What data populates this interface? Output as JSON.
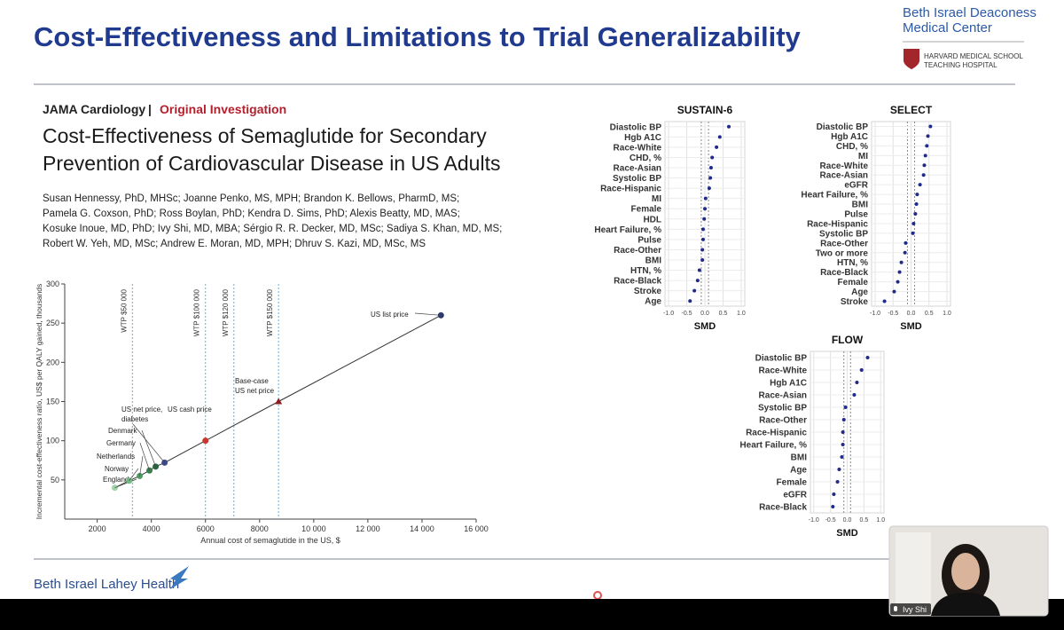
{
  "header": {
    "title": "Cost-Effectiveness and Limitations to Trial Generalizability",
    "logo": {
      "name_lines": [
        "Beth Israel Deaconess",
        "Medical Center"
      ],
      "affiliation_lines": [
        "HARVARD MEDICAL SCHOOL",
        "TEACHING HOSPITAL"
      ]
    }
  },
  "article": {
    "journal": "JAMA Cardiology",
    "separator": "|",
    "section": "Original Investigation",
    "title_lines": [
      "Cost-Effectiveness of Semaglutide for Secondary",
      "Prevention of Cardiovascular Disease in US Adults"
    ],
    "author_lines": [
      "Susan Hennessy, PhD, MHSc; Joanne Penko, MS, MPH; Brandon K. Bellows, PharmD, MS;",
      "Pamela G. Coxson, PhD; Ross Boylan, PhD; Kendra D. Sims, PhD; Alexis Beatty, MD, MAS;",
      "Kosuke Inoue, MD, PhD; Ivy Shi, MD, MBA; Sérgio R. R. Decker, MD, MSc; Sadiya S. Khan, MD, MS;",
      "Robert W. Yeh, MD, MSc; Andrew E. Moran, MD, MPH; Dhruv S. Kazi, MD, MSc, MS"
    ]
  },
  "chart_data": [
    {
      "type": "scatter",
      "x_label": "Annual cost of semaglutide in the US, $",
      "y_label": "Incremental cost-effectiveness ratio, US$ per QALY gained, thousands",
      "xlim": [
        800,
        16000
      ],
      "ylim": [
        0,
        300
      ],
      "xticks": [
        2000,
        4000,
        6000,
        8000,
        {
          "value": 10000,
          "label": "10 000"
        },
        {
          "value": 12000,
          "label": "12 000"
        },
        {
          "value": 14000,
          "label": "14 000"
        },
        {
          "value": 16000,
          "label": "16 000"
        }
      ],
      "yticks": [
        50,
        100,
        150,
        200,
        250,
        300
      ],
      "x": [
        2650,
        3180,
        3570,
        3930,
        4160,
        4490,
        6000,
        8700,
        14700
      ],
      "values": [
        40,
        49,
        55,
        62,
        67,
        72,
        100,
        150,
        260
      ],
      "labels": [
        [
          "England"
        ],
        [
          "Norway"
        ],
        [
          "Netherlands"
        ],
        [
          "Germany"
        ],
        [
          "Denmark"
        ],
        [
          "US net price,",
          "diabetes"
        ],
        [
          "US cash price"
        ],
        [
          "Base-case",
          "US net price"
        ],
        [
          "US list price"
        ]
      ],
      "colors": [
        "#9fd3a9",
        "#72b884",
        "#4f9a63",
        "#3a7f4e",
        "#2c6640",
        "#3c4a8c",
        "#c9372f",
        "#8e1c1c",
        "#2d3a6d"
      ],
      "wtp": {
        "x": [
          3300,
          6000,
          7050,
          8700
        ],
        "labels": [
          "WTP $50 000",
          "WTP $100 000",
          "WTP $120 000",
          "WTP $150 000"
        ]
      }
    },
    {
      "type": "dot",
      "title": "SUSTAIN-6",
      "x_label": "SMD",
      "xlim": [
        -1.1,
        1.1
      ],
      "xticks": [
        {
          "value": -1,
          "label": "-1.0"
        },
        -0.5,
        {
          "value": 0,
          "label": "0.0"
        },
        0.5,
        {
          "value": 1,
          "label": "1.0"
        }
      ],
      "ref_lines": [
        -0.1,
        0.1
      ],
      "color": "#1f2a8a",
      "categories": [
        "Diastolic BP",
        "Hgb A1C",
        "Race-White",
        "CHD, %",
        "Race-Asian",
        "Systolic BP",
        "Race-Hispanic",
        "MI",
        "Female",
        "HDL",
        "Heart Failure, %",
        "Pulse",
        "Race-Other",
        "BMI",
        "HTN, %",
        "Race-Black",
        "Stroke",
        "Age"
      ],
      "values": [
        0.66,
        0.41,
        0.32,
        0.2,
        0.17,
        0.15,
        0.12,
        0.02,
        0,
        -0.02,
        -0.05,
        -0.05,
        -0.07,
        -0.07,
        -0.15,
        -0.2,
        -0.29,
        -0.41
      ]
    },
    {
      "type": "dot",
      "title": "SELECT",
      "x_label": "SMD",
      "xlim": [
        -1.1,
        1.1
      ],
      "xticks": [
        {
          "value": -1,
          "label": "-1.0"
        },
        -0.5,
        {
          "value": 0,
          "label": "0.0"
        },
        0.5,
        {
          "value": 1,
          "label": "1.0"
        }
      ],
      "ref_lines": [
        -0.1,
        0.1
      ],
      "color": "#1f2a8a",
      "categories": [
        "Diastolic BP",
        "Hgb A1C",
        "CHD, %",
        "MI",
        "Race-White",
        "Race-Asian",
        "eGFR",
        "Heart Failure, %",
        "BMI",
        "Pulse",
        "Race-Hispanic",
        "Systolic BP",
        "Race-Other",
        "Two or more",
        "HTN, %",
        "Race-Black",
        "Female",
        "Age",
        "Stroke"
      ],
      "values": [
        0.54,
        0.47,
        0.44,
        0.4,
        0.37,
        0.35,
        0.25,
        0.17,
        0.15,
        0.12,
        0.07,
        0.05,
        -0.15,
        -0.17,
        -0.27,
        -0.32,
        -0.37,
        -0.47,
        -0.74
      ]
    },
    {
      "type": "dot",
      "title": "FLOW",
      "x_label": "SMD",
      "xlim": [
        -1.1,
        1.1
      ],
      "xticks": [
        {
          "value": -1,
          "label": "-1.0"
        },
        -0.5,
        {
          "value": 0,
          "label": "0.0"
        },
        0.5,
        {
          "value": 1,
          "label": "1.0"
        }
      ],
      "ref_lines": [
        -0.1,
        0.1
      ],
      "color": "#1f2a8a",
      "categories": [
        "Diastolic BP",
        "Race-White",
        "Hgb A1C",
        "Race-Asian",
        "Systolic BP",
        "Race-Other",
        "Race-Hispanic",
        "Heart Failure, %",
        "BMI",
        "Age",
        "Female",
        "eGFR",
        "Race-Black"
      ],
      "values": [
        0.61,
        0.43,
        0.29,
        0.21,
        -0.05,
        -0.1,
        -0.13,
        -0.13,
        -0.16,
        -0.24,
        -0.29,
        -0.4,
        -0.43
      ]
    }
  ],
  "footer": {
    "brand": "Beth Israel Lahey Health"
  },
  "video": {
    "participant": "Ivy Shi"
  }
}
